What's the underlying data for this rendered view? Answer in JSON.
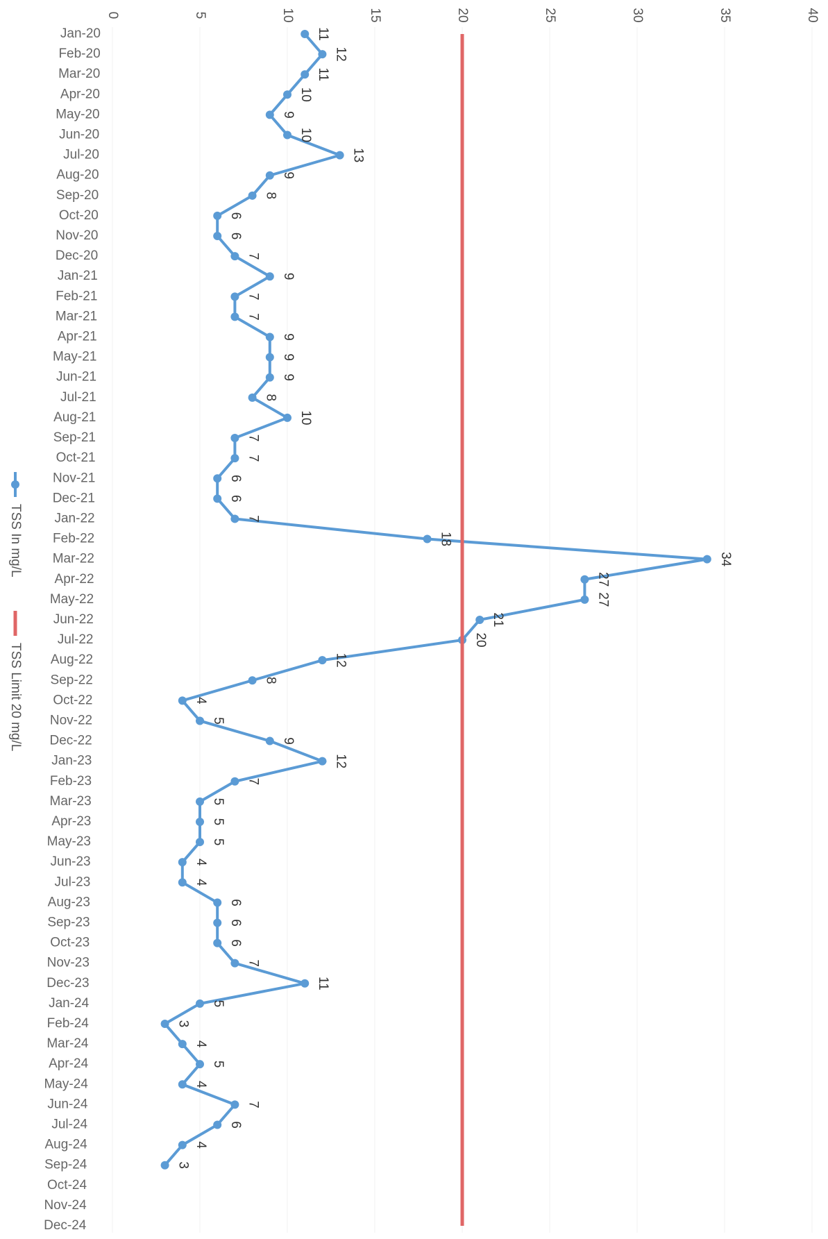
{
  "chart_data": {
    "type": "line",
    "categories": [
      "Jan-20",
      "Feb-20",
      "Mar-20",
      "Apr-20",
      "May-20",
      "Jun-20",
      "Jul-20",
      "Aug-20",
      "Sep-20",
      "Oct-20",
      "Nov-20",
      "Dec-20",
      "Jan-21",
      "Feb-21",
      "Mar-21",
      "Apr-21",
      "May-21",
      "Jun-21",
      "Jul-21",
      "Aug-21",
      "Sep-21",
      "Oct-21",
      "Nov-21",
      "Dec-21",
      "Jan-22",
      "Feb-22",
      "Mar-22",
      "Apr-22",
      "May-22",
      "Jun-22",
      "Jul-22",
      "Aug-22",
      "Sep-22",
      "Oct-22",
      "Nov-22",
      "Dec-22",
      "Jan-23",
      "Feb-23",
      "Mar-23",
      "Apr-23",
      "May-23",
      "Jun-23",
      "Jul-23",
      "Aug-23",
      "Sep-23",
      "Oct-23",
      "Nov-23",
      "Dec-23",
      "Jan-24",
      "Feb-24",
      "Mar-24",
      "Apr-24",
      "May-24",
      "Jun-24",
      "Jul-24",
      "Aug-24",
      "Sep-24",
      "Oct-24",
      "Nov-24",
      "Dec-24"
    ],
    "series": [
      {
        "name": "TSS In mg/L",
        "color": "#5b9bd5",
        "labels": true,
        "values": [
          11,
          12,
          11,
          10,
          9,
          10,
          13,
          9,
          8,
          6,
          6,
          7,
          9,
          7,
          7,
          9,
          9,
          9,
          8,
          10,
          7,
          7,
          6,
          6,
          7,
          18,
          34,
          27,
          27,
          21,
          20,
          12,
          8,
          4,
          5,
          9,
          12,
          7,
          5,
          5,
          5,
          4,
          4,
          6,
          6,
          6,
          7,
          11,
          5,
          3,
          4,
          5,
          4,
          7,
          6,
          4,
          3,
          null,
          null,
          null
        ]
      },
      {
        "name": "TSS Limit 20 mg/L",
        "color": "#e06666",
        "labels": false,
        "values": [
          20,
          20,
          20,
          20,
          20,
          20,
          20,
          20,
          20,
          20,
          20,
          20,
          20,
          20,
          20,
          20,
          20,
          20,
          20,
          20,
          20,
          20,
          20,
          20,
          20,
          20,
          20,
          20,
          20,
          20,
          20,
          20,
          20,
          20,
          20,
          20,
          20,
          20,
          20,
          20,
          20,
          20,
          20,
          20,
          20,
          20,
          20,
          20,
          20,
          20,
          20,
          20,
          20,
          20,
          20,
          20,
          20,
          20,
          20,
          20
        ]
      }
    ],
    "ylim": [
      0,
      40
    ],
    "yticks": [
      0,
      5,
      10,
      15,
      20,
      25,
      30,
      35,
      40
    ],
    "grid": true
  }
}
